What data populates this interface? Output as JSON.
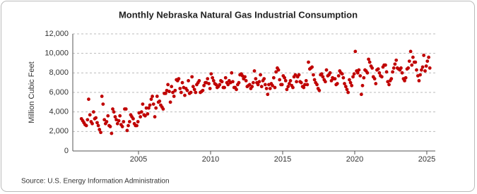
{
  "chart_data": {
    "type": "scatter",
    "title": "Monthly Nebraska Natural Gas Industrial Consumption",
    "ylabel": "Million Cubic Feet",
    "source": "Source: U.S. Energy Information Administration",
    "xlim": [
      2000.44,
      2025.59
    ],
    "xticks": [
      2005,
      2010,
      2015,
      2020,
      2025
    ],
    "ylim": [
      0,
      12000
    ],
    "yticks": [
      0,
      {
        "value": 2000,
        "label": "2,000"
      },
      {
        "value": 4000,
        "label": "4,000"
      },
      {
        "value": 6000,
        "label": "6,000"
      },
      {
        "value": 8000,
        "label": "8,000"
      },
      {
        "value": 10000,
        "label": "10,000"
      },
      {
        "value": 12000,
        "label": "12,000"
      }
    ],
    "grid": true,
    "series": [
      {
        "color": "#c00000",
        "x": [
          2001.04,
          2001.13,
          2001.21,
          2001.29,
          2001.38,
          2001.46,
          2001.54,
          2001.63,
          2001.71,
          2001.79,
          2001.88,
          2001.96,
          2002.04,
          2002.13,
          2002.21,
          2002.29,
          2002.38,
          2002.46,
          2002.54,
          2002.63,
          2002.71,
          2002.79,
          2002.88,
          2002.96,
          2003.04,
          2003.13,
          2003.21,
          2003.29,
          2003.38,
          2003.46,
          2003.54,
          2003.63,
          2003.71,
          2003.79,
          2003.88,
          2003.96,
          2004.04,
          2004.13,
          2004.21,
          2004.29,
          2004.38,
          2004.46,
          2004.54,
          2004.63,
          2004.71,
          2004.79,
          2004.88,
          2004.96,
          2005.04,
          2005.13,
          2005.21,
          2005.29,
          2005.38,
          2005.46,
          2005.54,
          2005.63,
          2005.71,
          2005.79,
          2005.88,
          2005.96,
          2006.04,
          2006.13,
          2006.21,
          2006.29,
          2006.38,
          2006.46,
          2006.54,
          2006.63,
          2006.71,
          2006.79,
          2006.88,
          2006.96,
          2007.04,
          2007.13,
          2007.21,
          2007.29,
          2007.38,
          2007.46,
          2007.54,
          2007.63,
          2007.71,
          2007.79,
          2007.88,
          2007.96,
          2008.04,
          2008.13,
          2008.21,
          2008.29,
          2008.38,
          2008.46,
          2008.54,
          2008.63,
          2008.71,
          2008.79,
          2008.88,
          2008.96,
          2009.04,
          2009.13,
          2009.21,
          2009.29,
          2009.38,
          2009.46,
          2009.54,
          2009.63,
          2009.71,
          2009.79,
          2009.88,
          2009.96,
          2010.04,
          2010.13,
          2010.21,
          2010.29,
          2010.38,
          2010.46,
          2010.54,
          2010.63,
          2010.71,
          2010.79,
          2010.88,
          2010.96,
          2011.04,
          2011.13,
          2011.21,
          2011.29,
          2011.38,
          2011.46,
          2011.54,
          2011.63,
          2011.71,
          2011.79,
          2011.88,
          2011.96,
          2012.04,
          2012.13,
          2012.21,
          2012.29,
          2012.38,
          2012.46,
          2012.54,
          2012.63,
          2012.71,
          2012.79,
          2012.88,
          2012.96,
          2013.04,
          2013.13,
          2013.21,
          2013.29,
          2013.38,
          2013.46,
          2013.54,
          2013.63,
          2013.71,
          2013.79,
          2013.88,
          2013.96,
          2014.04,
          2014.13,
          2014.21,
          2014.29,
          2014.38,
          2014.46,
          2014.54,
          2014.63,
          2014.71,
          2014.79,
          2014.88,
          2014.96,
          2015.04,
          2015.13,
          2015.21,
          2015.29,
          2015.38,
          2015.46,
          2015.54,
          2015.63,
          2015.71,
          2015.79,
          2015.88,
          2015.96,
          2016.04,
          2016.13,
          2016.21,
          2016.29,
          2016.38,
          2016.46,
          2016.54,
          2016.63,
          2016.71,
          2016.79,
          2016.88,
          2016.96,
          2017.04,
          2017.13,
          2017.21,
          2017.29,
          2017.38,
          2017.46,
          2017.54,
          2017.63,
          2017.71,
          2017.79,
          2017.88,
          2017.96,
          2018.04,
          2018.13,
          2018.21,
          2018.29,
          2018.38,
          2018.46,
          2018.54,
          2018.63,
          2018.71,
          2018.79,
          2018.88,
          2018.96,
          2019.04,
          2019.13,
          2019.21,
          2019.29,
          2019.38,
          2019.46,
          2019.54,
          2019.63,
          2019.71,
          2019.79,
          2019.88,
          2019.96,
          2020.04,
          2020.13,
          2020.21,
          2020.29,
          2020.38,
          2020.46,
          2020.54,
          2020.63,
          2020.71,
          2020.79,
          2020.88,
          2020.96,
          2021.04,
          2021.13,
          2021.21,
          2021.29,
          2021.38,
          2021.46,
          2021.54,
          2021.63,
          2021.71,
          2021.79,
          2021.88,
          2021.96,
          2022.04,
          2022.13,
          2022.21,
          2022.29,
          2022.38,
          2022.46,
          2022.54,
          2022.63,
          2022.71,
          2022.79,
          2022.88,
          2022.96,
          2023.04,
          2023.13,
          2023.21,
          2023.29,
          2023.38,
          2023.46,
          2023.54,
          2023.63,
          2023.71,
          2023.79,
          2023.88,
          2023.96,
          2024.04,
          2024.13,
          2024.21,
          2024.29,
          2024.38,
          2024.46,
          2024.54,
          2024.63,
          2024.71,
          2024.79,
          2024.88,
          2024.96,
          2025.04,
          2025.13,
          2025.21
        ],
        "values": [
          3300,
          3100,
          2900,
          2700,
          2600,
          3200,
          5300,
          3700,
          3000,
          2800,
          4000,
          3300,
          3400,
          2900,
          2600,
          2200,
          1900,
          5600,
          4800,
          3200,
          2800,
          3000,
          3600,
          2600,
          2500,
          1800,
          4300,
          4000,
          3500,
          3200,
          2800,
          3100,
          3600,
          2700,
          2500,
          3000,
          4300,
          4300,
          2100,
          2600,
          3000,
          3700,
          3500,
          3300,
          2800,
          2600,
          2600,
          3000,
          3900,
          3500,
          4000,
          4800,
          3700,
          3600,
          4400,
          3800,
          4400,
          4700,
          5300,
          5600,
          4800,
          3500,
          4400,
          5600,
          5000,
          5100,
          4700,
          4500,
          4300,
          5900,
          5900,
          6200,
          6800,
          6100,
          5000,
          6600,
          6000,
          5600,
          6200,
          7300,
          7200,
          7400,
          6400,
          6000,
          7000,
          6500,
          5700,
          6400,
          6200,
          7200,
          5900,
          6000,
          7600,
          6600,
          6300,
          6000,
          6800,
          7000,
          7200,
          6000,
          6100,
          6200,
          6700,
          7000,
          7000,
          7400,
          6900,
          6400,
          7900,
          7500,
          7200,
          6900,
          6800,
          6500,
          6600,
          6800,
          7200,
          7100,
          6500,
          6500,
          7500,
          7000,
          6800,
          7200,
          7000,
          8000,
          7100,
          6500,
          6500,
          6300,
          6800,
          7000,
          7800,
          7900,
          7700,
          7400,
          7600,
          7200,
          6600,
          6700,
          6800,
          6400,
          6600,
          7000,
          8200,
          7400,
          7000,
          6800,
          7100,
          7800,
          6600,
          7200,
          7400,
          6800,
          6400,
          5800,
          6800,
          6400,
          6900,
          6700,
          7500,
          6500,
          8100,
          8500,
          8300,
          7300,
          6800,
          6800,
          7700,
          7500,
          7200,
          6300,
          6600,
          6900,
          7200,
          6700,
          6500,
          7600,
          7800,
          7100,
          7600,
          7800,
          7100,
          7000,
          6600,
          6500,
          6800,
          7200,
          6800,
          9100,
          8400,
          8500,
          8600,
          7800,
          7300,
          7000,
          6800,
          6400,
          6200,
          7800,
          7900,
          7600,
          7300,
          7100,
          8300,
          7700,
          7800,
          8000,
          7200,
          7500,
          7400,
          7400,
          6800,
          6900,
          7700,
          8200,
          8000,
          7900,
          7500,
          6900,
          6600,
          6300,
          6000,
          7300,
          7000,
          6700,
          7600,
          7900,
          10200,
          8200,
          8000,
          8300,
          7700,
          5800,
          6700,
          7500,
          8300,
          8200,
          8000,
          9400,
          9100,
          8700,
          8500,
          7600,
          7400,
          6900,
          8300,
          8400,
          8000,
          7700,
          7600,
          8600,
          8800,
          8800,
          8100,
          7100,
          6800,
          7200,
          7400,
          8100,
          8500,
          8900,
          9300,
          8500,
          8400,
          8300,
          8500,
          8000,
          7400,
          7200,
          7500,
          8400,
          8500,
          9200,
          10200,
          8800,
          9600,
          9100,
          9100,
          8300,
          7700,
          7200,
          7800,
          8300,
          8600,
          9800,
          8200,
          8700,
          9200,
          9600,
          8500
        ]
      }
    ]
  }
}
